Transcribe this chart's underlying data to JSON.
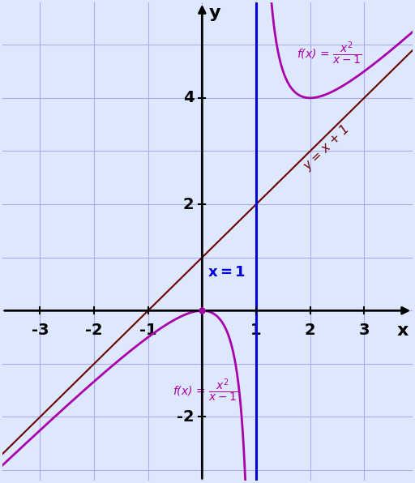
{
  "xlim": [
    -3.7,
    3.9
  ],
  "ylim": [
    -3.2,
    5.8
  ],
  "xticks": [
    -3,
    -2,
    -1,
    1,
    2,
    3
  ],
  "yticks": [
    -2,
    2,
    4
  ],
  "grid_color": "#aaaaee",
  "bg_color": "#ffffff",
  "fig_bg_color": "#dde8ff",
  "rational_color": "#aa00aa",
  "asymptote_color": "#0000dd",
  "oblique_color": "#6b0000",
  "asymptote_x": 1.0,
  "axis_label_x": "x",
  "axis_label_y": "y",
  "rational_lw": 2.0,
  "oblique_lw": 1.5,
  "asymptote_lw": 2.2
}
